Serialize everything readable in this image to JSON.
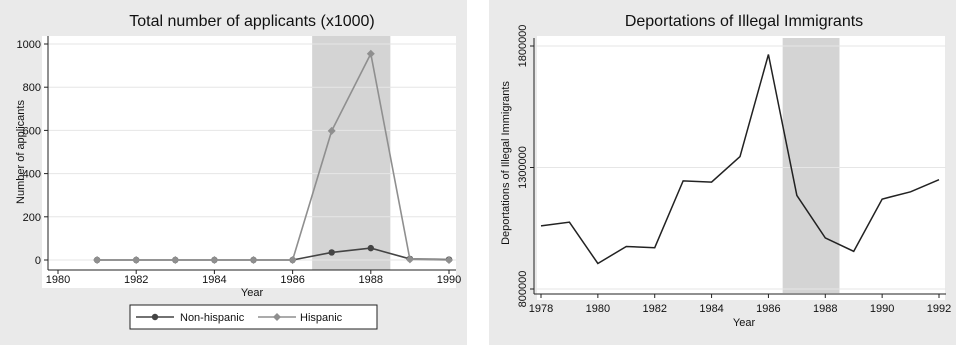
{
  "chart_data": [
    {
      "type": "line",
      "title": "Total number of applicants (x1000)",
      "xlabel": "Year",
      "ylabel": "Number of applicants",
      "xlim": [
        1980,
        1990
      ],
      "ylim": [
        0,
        1000
      ],
      "x_ticks": [
        "1980",
        "1982",
        "1984",
        "1986",
        "1988",
        "1990"
      ],
      "y_ticks": [
        "0",
        "200",
        "400",
        "600",
        "800",
        "1000"
      ],
      "x": [
        1981,
        1982,
        1983,
        1984,
        1985,
        1986,
        1987,
        1988,
        1989,
        1990
      ],
      "shaded_region": [
        1986.5,
        1988.5
      ],
      "grid": true,
      "legend_position": "bottom",
      "series": [
        {
          "name": "Non-hispanic",
          "marker": "circle",
          "color": "#444444",
          "values": [
            0,
            0,
            0,
            0,
            0,
            0,
            35,
            55,
            5,
            2
          ]
        },
        {
          "name": "Hispanic",
          "marker": "diamond",
          "color": "#8f8f8f",
          "values": [
            0,
            0,
            0,
            0,
            0,
            0,
            598,
            955,
            3,
            0
          ]
        }
      ]
    },
    {
      "type": "line",
      "title": "Deportations of Illegal Immigrants",
      "xlabel": "Year",
      "ylabel": "Deportations of Illegal Immigrants",
      "xlim": [
        1978,
        1992
      ],
      "ylim": [
        800000,
        1800000
      ],
      "x_ticks": [
        "1978",
        "1980",
        "1982",
        "1984",
        "1986",
        "1988",
        "1990",
        "1992"
      ],
      "y_ticks": [
        "800000",
        "1300000",
        "1800000"
      ],
      "x": [
        1978,
        1979,
        1980,
        1981,
        1982,
        1983,
        1984,
        1985,
        1986,
        1987,
        1988,
        1989,
        1990,
        1991,
        1992
      ],
      "shaded_region": [
        1986.5,
        1988.5
      ],
      "grid": true,
      "series": [
        {
          "color": "#222222",
          "values": [
            1060000,
            1075000,
            905000,
            975000,
            970000,
            1245000,
            1240000,
            1345000,
            1765000,
            1185000,
            1010000,
            955000,
            1170000,
            1200000,
            1250000
          ]
        }
      ]
    }
  ]
}
